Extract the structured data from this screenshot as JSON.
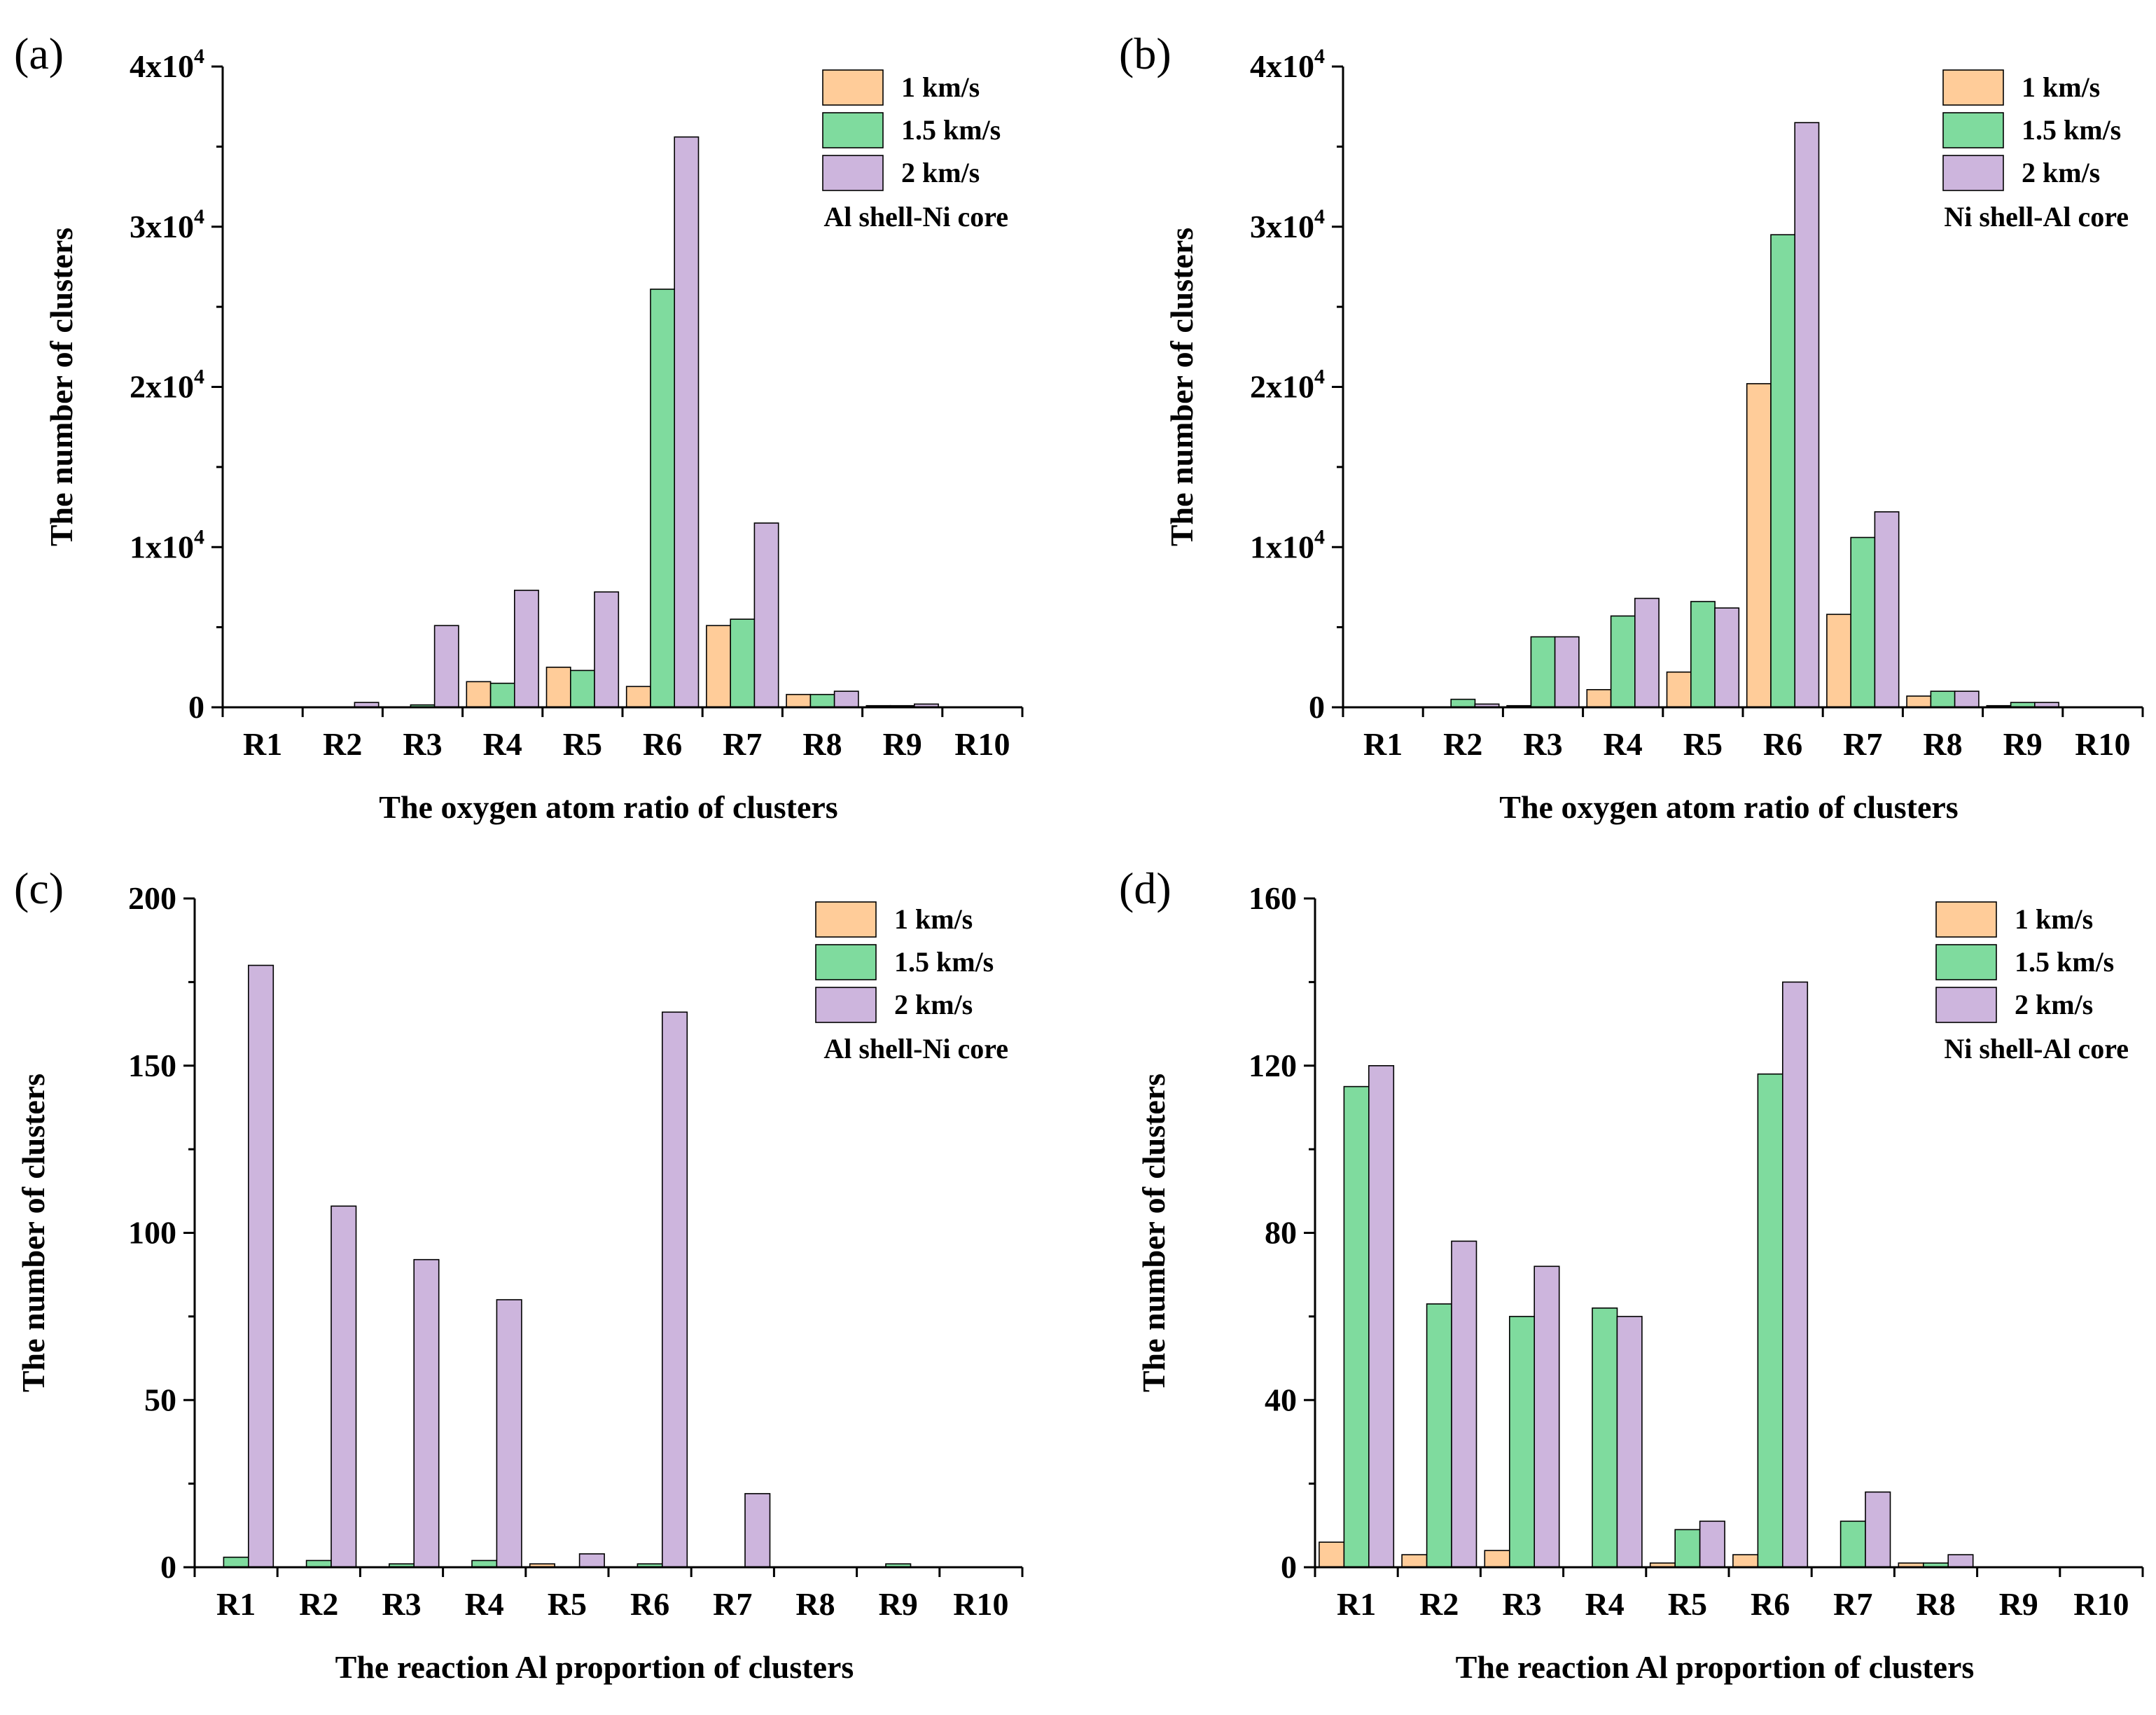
{
  "chart_data": [
    {
      "id": "a",
      "panel_label": "(a)",
      "type": "bar",
      "xlabel": "The oxygen atom ratio of clusters",
      "ylabel": "The number of clusters",
      "ylim": [
        0,
        40000
      ],
      "yticks": [
        {
          "value": 0,
          "base": "0",
          "exp": ""
        },
        {
          "value": 10000,
          "base": "1x10",
          "exp": "4"
        },
        {
          "value": 20000,
          "base": "2x10",
          "exp": "4"
        },
        {
          "value": 30000,
          "base": "3x10",
          "exp": "4"
        },
        {
          "value": 40000,
          "base": "4x10",
          "exp": "4"
        }
      ],
      "categories": [
        "R1",
        "R2",
        "R3",
        "R4",
        "R5",
        "R6",
        "R7",
        "R8",
        "R9",
        "R10"
      ],
      "series": [
        {
          "name": "1 km/s",
          "color": "#FFCC99",
          "values": [
            0,
            0,
            0,
            1600,
            2500,
            1300,
            5100,
            800,
            100,
            0
          ]
        },
        {
          "name": "1.5 km/s",
          "color": "#7FDB9E",
          "values": [
            0,
            0,
            150,
            1500,
            2300,
            26100,
            5500,
            800,
            100,
            0
          ]
        },
        {
          "name": "2 km/s",
          "color": "#CDB5DD",
          "values": [
            0,
            300,
            5100,
            7300,
            7200,
            35600,
            11500,
            1000,
            200,
            0
          ]
        }
      ],
      "annotation": "Al shell-Ni core"
    },
    {
      "id": "b",
      "panel_label": "(b)",
      "type": "bar",
      "xlabel": "The oxygen atom ratio of clusters",
      "ylabel": "The number of clusters",
      "ylim": [
        0,
        40000
      ],
      "yticks": [
        {
          "value": 0,
          "base": "0",
          "exp": ""
        },
        {
          "value": 10000,
          "base": "1x10",
          "exp": "4"
        },
        {
          "value": 20000,
          "base": "2x10",
          "exp": "4"
        },
        {
          "value": 30000,
          "base": "3x10",
          "exp": "4"
        },
        {
          "value": 40000,
          "base": "4x10",
          "exp": "4"
        }
      ],
      "categories": [
        "R1",
        "R2",
        "R3",
        "R4",
        "R5",
        "R6",
        "R7",
        "R8",
        "R9",
        "R10"
      ],
      "series": [
        {
          "name": "1 km/s",
          "color": "#FFCC99",
          "values": [
            0,
            0,
            100,
            1100,
            2200,
            20200,
            5800,
            700,
            100,
            0
          ]
        },
        {
          "name": "1.5 km/s",
          "color": "#7FDB9E",
          "values": [
            0,
            500,
            4400,
            5700,
            6600,
            29500,
            10600,
            1000,
            300,
            0
          ]
        },
        {
          "name": "2 km/s",
          "color": "#CDB5DD",
          "values": [
            0,
            200,
            4400,
            6800,
            6200,
            36500,
            12200,
            1000,
            300,
            0
          ]
        }
      ],
      "annotation": "Ni shell-Al core"
    },
    {
      "id": "c",
      "panel_label": "(c)",
      "type": "bar",
      "xlabel": "The reaction Al proportion of  clusters",
      "ylabel": "The number of clusters",
      "ylim": [
        0,
        200
      ],
      "yticks": [
        {
          "value": 0,
          "base": "0",
          "exp": ""
        },
        {
          "value": 50,
          "base": "50",
          "exp": ""
        },
        {
          "value": 100,
          "base": "100",
          "exp": ""
        },
        {
          "value": 150,
          "base": "150",
          "exp": ""
        },
        {
          "value": 200,
          "base": "200",
          "exp": ""
        }
      ],
      "categories": [
        "R1",
        "R2",
        "R3",
        "R4",
        "R5",
        "R6",
        "R7",
        "R8",
        "R9",
        "R10"
      ],
      "series": [
        {
          "name": "1 km/s",
          "color": "#FFCC99",
          "values": [
            0,
            0,
            0,
            0,
            1,
            0,
            0,
            0,
            0,
            0
          ]
        },
        {
          "name": "1.5 km/s",
          "color": "#7FDB9E",
          "values": [
            3,
            2,
            1,
            2,
            0,
            1,
            0,
            0,
            1,
            0
          ]
        },
        {
          "name": "2 km/s",
          "color": "#CDB5DD",
          "values": [
            180,
            108,
            92,
            80,
            4,
            166,
            22,
            0,
            0,
            0
          ]
        }
      ],
      "annotation": "Al shell-Ni core"
    },
    {
      "id": "d",
      "panel_label": "(d)",
      "type": "bar",
      "xlabel": "The reaction Al proportion of  clusters",
      "ylabel": "The number of clusters",
      "ylim": [
        0,
        160
      ],
      "yticks": [
        {
          "value": 0,
          "base": "0",
          "exp": ""
        },
        {
          "value": 40,
          "base": "40",
          "exp": ""
        },
        {
          "value": 80,
          "base": "80",
          "exp": ""
        },
        {
          "value": 120,
          "base": "120",
          "exp": ""
        },
        {
          "value": 160,
          "base": "160",
          "exp": ""
        }
      ],
      "categories": [
        "R1",
        "R2",
        "R3",
        "R4",
        "R5",
        "R6",
        "R7",
        "R8",
        "R9",
        "R10"
      ],
      "series": [
        {
          "name": "1 km/s",
          "color": "#FFCC99",
          "values": [
            6,
            3,
            4,
            0,
            1,
            3,
            0,
            1,
            0,
            0
          ]
        },
        {
          "name": "1.5 km/s",
          "color": "#7FDB9E",
          "values": [
            115,
            63,
            60,
            62,
            9,
            118,
            11,
            1,
            0,
            0
          ]
        },
        {
          "name": "2 km/s",
          "color": "#CDB5DD",
          "values": [
            120,
            78,
            72,
            60,
            11,
            140,
            18,
            3,
            0,
            0
          ]
        }
      ],
      "annotation": "Ni shell-Al core"
    }
  ]
}
